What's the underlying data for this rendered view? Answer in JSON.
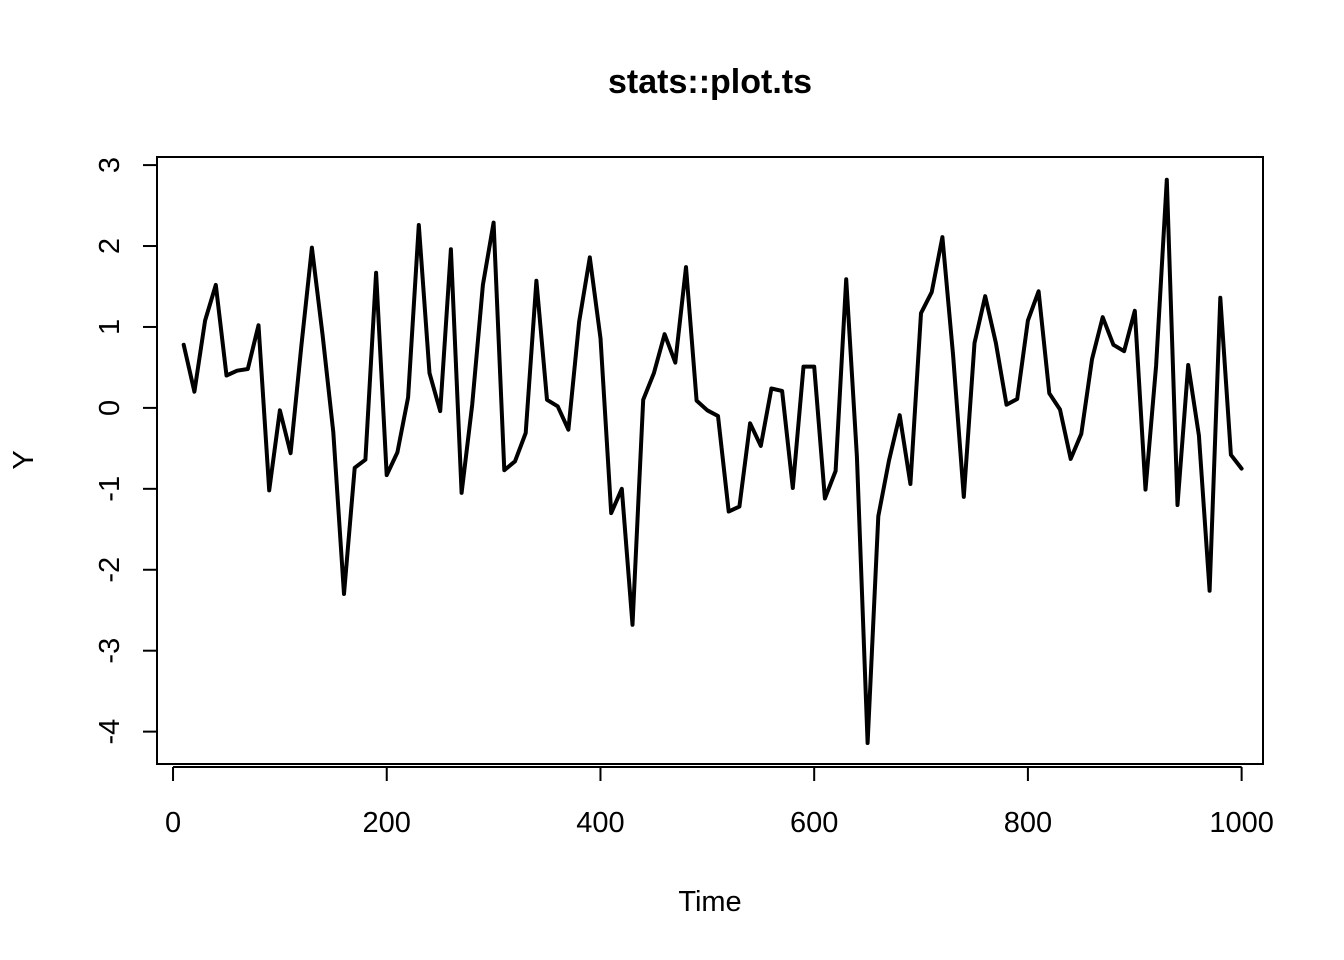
{
  "chart_data": {
    "type": "line",
    "title": "stats::plot.ts",
    "xlabel": "Time",
    "ylabel": "Y",
    "xlim": [
      -15,
      1020
    ],
    "ylim": [
      -4.4,
      3.1
    ],
    "xticks": [
      0,
      200,
      400,
      600,
      800,
      1000
    ],
    "yticks": [
      -4,
      -3,
      -2,
      -1,
      0,
      1,
      2,
      3
    ],
    "xtick_labels": [
      "0",
      "200",
      "400",
      "600",
      "800",
      "1000"
    ],
    "ytick_labels": [
      "-4",
      "-3",
      "-2",
      "-1",
      "0",
      "1",
      "2",
      "3"
    ],
    "grid": false,
    "line_color": "#000000",
    "series": [
      {
        "x": [
          10,
          20,
          30,
          40,
          50,
          60,
          70,
          80,
          90,
          100,
          110,
          120,
          130,
          140,
          150,
          160,
          170,
          180,
          190,
          200,
          210,
          220,
          230,
          240,
          250,
          260,
          270,
          280,
          290,
          300,
          310,
          320,
          330,
          340,
          350,
          360,
          370,
          380,
          390,
          400,
          410,
          420,
          430,
          440,
          450,
          460,
          470,
          480,
          490,
          500,
          510,
          520,
          530,
          540,
          550,
          560,
          570,
          580,
          590,
          600,
          610,
          620,
          630,
          640,
          650,
          660,
          670,
          680,
          690,
          700,
          710,
          720,
          730,
          740,
          750,
          760,
          770,
          780,
          790,
          800,
          810,
          820,
          830,
          840,
          850,
          860,
          870,
          880,
          890,
          900,
          910,
          920,
          930,
          940,
          950,
          960,
          970,
          980,
          990,
          1000
        ],
        "values": [
          0.78,
          0.2,
          1.08,
          1.52,
          0.4,
          0.46,
          0.48,
          1.02,
          -1.02,
          -0.03,
          -0.56,
          0.76,
          1.98,
          0.9,
          -0.3,
          -2.3,
          -0.74,
          -0.64,
          1.67,
          -0.83,
          -0.55,
          0.13,
          2.26,
          0.43,
          -0.04,
          1.96,
          -1.05,
          0.04,
          1.52,
          2.29,
          -0.77,
          -0.66,
          -0.31,
          1.57,
          0.1,
          0.02,
          -0.27,
          1.06,
          1.86,
          0.86,
          -1.3,
          -1.0,
          -2.68,
          0.1,
          0.43,
          0.91,
          0.56,
          1.74,
          0.09,
          -0.03,
          -0.1,
          -1.28,
          -1.22,
          -0.19,
          -0.47,
          0.24,
          0.21,
          -0.99,
          0.51,
          0.51,
          -1.12,
          -0.78,
          1.59,
          -0.6,
          -4.14,
          -1.34,
          -0.65,
          -0.09,
          -0.94,
          1.17,
          1.43,
          2.11,
          0.65,
          -1.1,
          0.8,
          1.38,
          0.8,
          0.04,
          0.11,
          1.08,
          1.44,
          0.18,
          -0.02,
          -0.63,
          -0.32,
          0.6,
          1.12,
          0.78,
          0.7,
          1.2,
          -1.01,
          0.52,
          2.82,
          -1.2,
          0.53,
          -0.34,
          -2.26,
          1.36,
          -0.58,
          -0.75
        ]
      }
    ]
  }
}
